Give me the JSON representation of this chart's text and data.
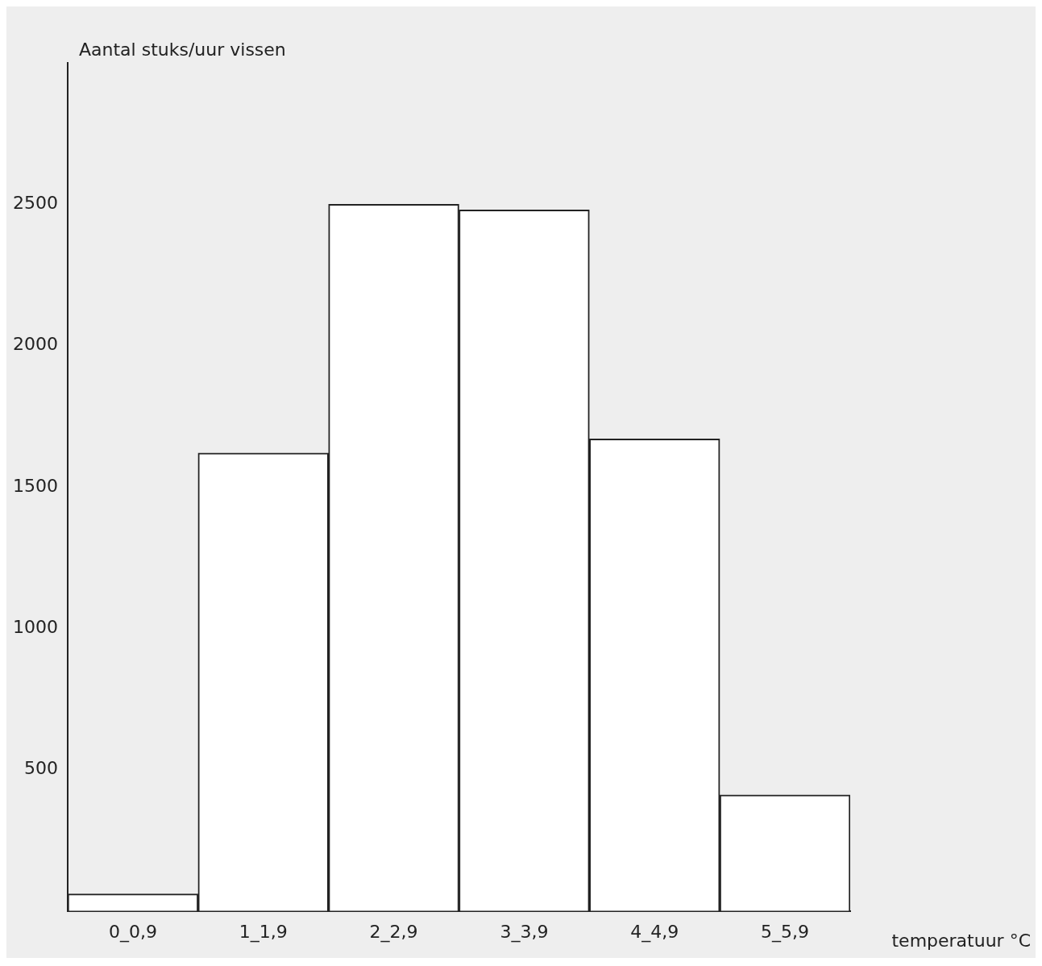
{
  "chart_data": {
    "type": "bar",
    "ylabel": "Aantal stuks/uur vissen",
    "xlabel": "temperatuur °C",
    "categories": [
      "0_0,9",
      "1_1,9",
      "2_2,9",
      "3_3,9",
      "4_4,9",
      "5_5,9"
    ],
    "values": [
      60,
      1620,
      2500,
      2480,
      1670,
      410
    ],
    "color": "#ffffff",
    "ylim": [
      0,
      3000
    ],
    "yticks": [
      500,
      1000,
      1500,
      2000,
      2500
    ],
    "grid": false,
    "legend": false
  }
}
